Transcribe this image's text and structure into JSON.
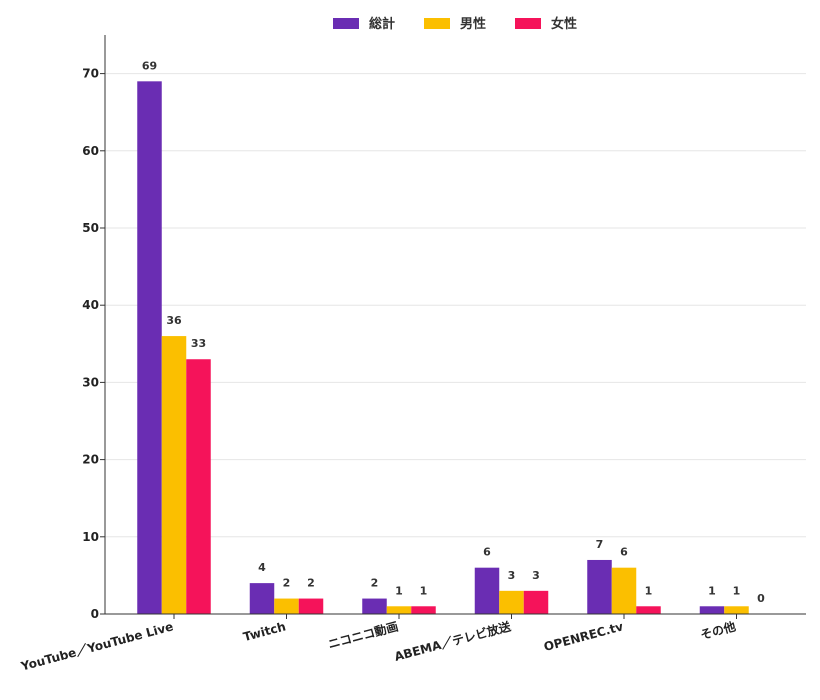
{
  "chart_data": {
    "type": "bar",
    "categories": [
      "YouTube／YouTube Live",
      "Twitch",
      "ニコニコ動画",
      "ABEMA／テレビ放送",
      "OPENREC.tv",
      "その他"
    ],
    "series": [
      {
        "name": "総計",
        "values": [
          69,
          4,
          2,
          6,
          7,
          1
        ],
        "color": "#6a2db3"
      },
      {
        "name": "男性",
        "values": [
          36,
          2,
          1,
          3,
          6,
          1
        ],
        "color": "#fbbf00"
      },
      {
        "name": "女性",
        "values": [
          33,
          2,
          1,
          3,
          1,
          0
        ],
        "color": "#f5135a"
      }
    ],
    "yticks": [
      0,
      10,
      20,
      30,
      40,
      50,
      60,
      70
    ],
    "ylim": [
      0,
      75
    ],
    "grid": true,
    "legend_position": "top-center",
    "data_labels": true
  }
}
